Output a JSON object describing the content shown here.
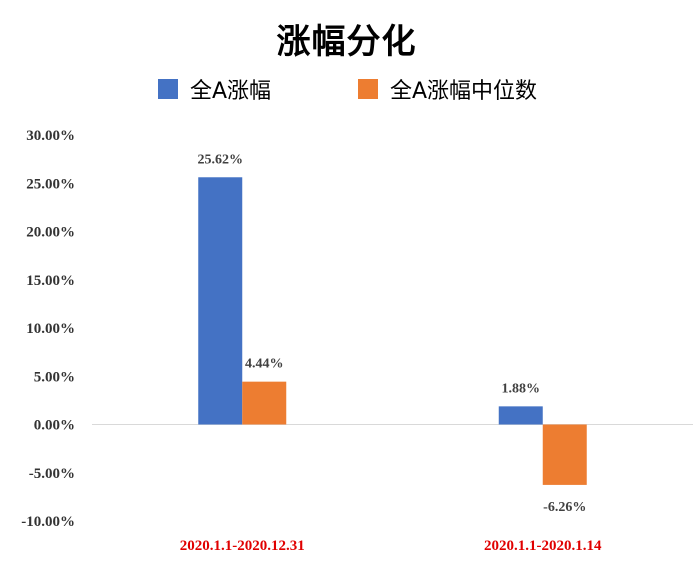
{
  "chart_data": {
    "type": "bar",
    "title": "涨幅分化",
    "categories": [
      "2020.1.1-2020.12.31",
      "2020.1.1-2020.1.14"
    ],
    "series": [
      {
        "name": "全A涨幅",
        "values": [
          25.62,
          1.88
        ],
        "labels": [
          "25.62%",
          "1.88%"
        ],
        "color": "#4472C4"
      },
      {
        "name": "全A涨幅中位数",
        "values": [
          4.44,
          -6.26
        ],
        "labels": [
          "4.44%",
          "-6.26%"
        ],
        "color": "#ED7D31"
      }
    ],
    "ylim": [
      -10,
      30
    ],
    "yticks": [
      30,
      25,
      20,
      15,
      10,
      5,
      0,
      -5,
      -10
    ],
    "ytick_labels": [
      "30.00%",
      "25.00%",
      "20.00%",
      "15.00%",
      "10.00%",
      "5.00%",
      "0.00%",
      "-5.00%",
      "-10.00%"
    ],
    "category_label_color": "#E00000",
    "legend_position": "top",
    "grid": false,
    "xlabel": "",
    "ylabel": ""
  }
}
